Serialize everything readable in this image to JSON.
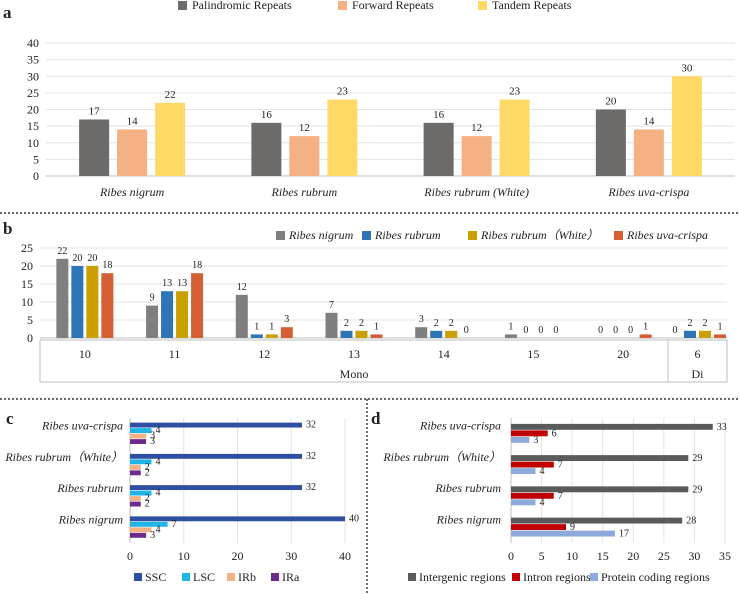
{
  "chart_data": [
    {
      "panel": "a",
      "type": "bar",
      "title": "",
      "categories": [
        "Ribes nigrum",
        "Ribes rubrum",
        "Ribes rubrum (White)",
        "Ribes uva-crispa"
      ],
      "series": [
        {
          "name": "Palindromic Repeats",
          "color": "#6d6a6a",
          "values": [
            17,
            16,
            16,
            20
          ]
        },
        {
          "name": "Forward Repeats",
          "color": "#f4b183",
          "values": [
            14,
            12,
            12,
            14
          ]
        },
        {
          "name": "Tandem Repeats",
          "color": "#ffd966",
          "values": [
            22,
            23,
            23,
            30
          ]
        }
      ],
      "yticks": [
        "0",
        "5",
        "10",
        "15",
        "20",
        "25",
        "30",
        "35",
        "40"
      ],
      "ylim": [
        0,
        40
      ],
      "legend_position": "top",
      "xlabel": "",
      "ylabel": ""
    },
    {
      "panel": "b",
      "type": "bar",
      "title": "",
      "categories": [
        "10",
        "11",
        "12",
        "13",
        "14",
        "15",
        "20",
        "6"
      ],
      "groups": [
        {
          "label": "Mono",
          "categories": [
            "10",
            "11",
            "12",
            "13",
            "14",
            "15",
            "20"
          ]
        },
        {
          "label": "Di",
          "categories": [
            "6"
          ]
        }
      ],
      "series": [
        {
          "name": "Ribes nigrum",
          "color": "#7f7f7f",
          "values": [
            22,
            9,
            12,
            7,
            3,
            1,
            0,
            0
          ]
        },
        {
          "name": "Ribes rubrum",
          "color": "#2e75b6",
          "values": [
            20,
            13,
            1,
            2,
            2,
            0,
            0,
            2
          ]
        },
        {
          "name": "Ribes rubrum（White）",
          "color": "#c9a000",
          "values": [
            20,
            13,
            1,
            2,
            2,
            0,
            0,
            2
          ]
        },
        {
          "name": "Ribes uva-crispa",
          "color": "#d35f33",
          "values": [
            18,
            18,
            3,
            1,
            0,
            0,
            1,
            1
          ]
        }
      ],
      "yticks": [
        "0",
        "5",
        "10",
        "15",
        "20",
        "25"
      ],
      "ylim": [
        0,
        25
      ],
      "legend_position": "top",
      "xlabel": "",
      "ylabel": ""
    },
    {
      "panel": "c",
      "type": "bar",
      "orientation": "horizontal",
      "title": "",
      "categories": [
        "Ribes uva-crispa",
        "Ribes rubrum（White）",
        "Ribes rubrum",
        "Ribes nigrum"
      ],
      "series": [
        {
          "name": "SSC",
          "color": "#2f4fa2",
          "values": [
            32,
            32,
            32,
            40
          ]
        },
        {
          "name": "LSC",
          "color": "#1fb5e6",
          "values": [
            4,
            4,
            4,
            7
          ]
        },
        {
          "name": "IRb",
          "color": "#f4b183",
          "values": [
            3,
            2,
            2,
            4
          ]
        },
        {
          "name": "IRa",
          "color": "#6a2b8c",
          "values": [
            3,
            2,
            2,
            3
          ]
        }
      ],
      "xticks": [
        "0",
        "10",
        "20",
        "30",
        "40"
      ],
      "xlim": [
        0,
        40
      ],
      "legend_position": "bottom",
      "xlabel": "",
      "ylabel": ""
    },
    {
      "panel": "d",
      "type": "bar",
      "orientation": "horizontal",
      "title": "",
      "categories": [
        "Ribes uva-crispa",
        "Ribes rubrum（White）",
        "Ribes rubrum",
        "Ribes nigrum"
      ],
      "series": [
        {
          "name": "Intergenic regions",
          "color": "#5a5a5a",
          "values": [
            33,
            29,
            29,
            28
          ]
        },
        {
          "name": "Intron regions",
          "color": "#c00000",
          "values": [
            6,
            7,
            7,
            9
          ]
        },
        {
          "name": "Protein coding regions",
          "color": "#8ea9db",
          "values": [
            3,
            4,
            4,
            17
          ]
        }
      ],
      "xticks": [
        "0",
        "5",
        "10",
        "15",
        "20",
        "25",
        "30",
        "35"
      ],
      "xlim": [
        0,
        35
      ],
      "legend_position": "bottom",
      "xlabel": "",
      "ylabel": ""
    }
  ]
}
